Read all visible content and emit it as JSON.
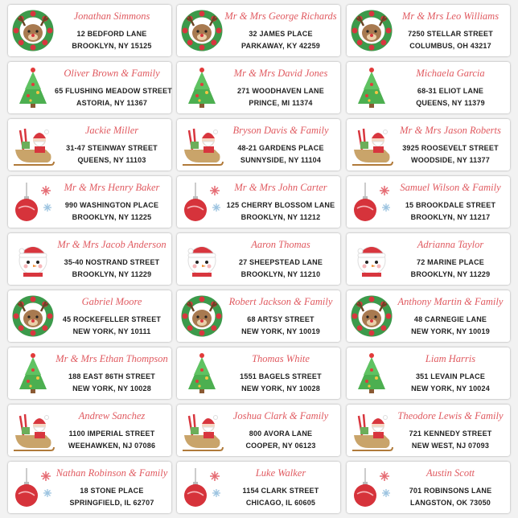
{
  "labels": [
    {
      "name": "Jonathan Simmons",
      "street": "12 BEDFORD LANE",
      "city": "BROOKLYN, NY 15125"
    },
    {
      "name": "Mr & Mrs George Richards",
      "street": "32 JAMES PLACE",
      "city": "PARKAWAY, KY 42259"
    },
    {
      "name": "Mr & Mrs Leo Williams",
      "street": "7250 STELLAR STREET",
      "city": "COLUMBUS, OH 43217"
    },
    {
      "name": "Oliver Brown & Family",
      "street": "65 FLUSHING MEADOW STREET",
      "city": "ASTORIA, NY 11367"
    },
    {
      "name": "Mr & Mrs David Jones",
      "street": "271 WOODHAVEN LANE",
      "city": "PRINCE, MI 11374"
    },
    {
      "name": "Michaela Garcia",
      "street": "68-31 ELIOT LANE",
      "city": "QUEENS, NY 11379"
    },
    {
      "name": "Jackie Miller",
      "street": "31-47 STEINWAY STREET",
      "city": "QUEENS, NY 11103"
    },
    {
      "name": "Bryson Davis & Family",
      "street": "48-21 GARDENS PLACE",
      "city": "SUNNYSIDE, NY 11104"
    },
    {
      "name": "Mr & Mrs Jason Roberts",
      "street": "3925 ROOSEVELT STREET",
      "city": "WOODSIDE, NY 11377"
    },
    {
      "name": "Mr & Mrs Henry Baker",
      "street": "990 WASHINGTON PLACE",
      "city": "BROOKLYN, NY 11225"
    },
    {
      "name": "Mr & Mrs John Carter",
      "street": "125 CHERRY BLOSSOM LANE",
      "city": "BROOKLYN, NY 11212"
    },
    {
      "name": "Samuel Wilson & Family",
      "street": "15 BROOKDALE STREET",
      "city": "BROOKLYN, NY 11217"
    },
    {
      "name": "Mr & Mrs Jacob Anderson",
      "street": "35-40 NOSTRAND STREET",
      "city": "BROOKLYN, NY 11229"
    },
    {
      "name": "Aaron Thomas",
      "street": "27 SHEEPSTEAD LANE",
      "city": "BROOKLYN, NY 11210"
    },
    {
      "name": "Adrianna Taylor",
      "street": "72 MARINE PLACE",
      "city": "BROOKLYN, NY 11229"
    },
    {
      "name": "Gabriel Moore",
      "street": "45 ROCKEFELLER STREET",
      "city": "NEW YORK, NY 10111"
    },
    {
      "name": "Robert Jackson & Family",
      "street": "68 ARTSY STREET",
      "city": "NEW YORK, NY 10019"
    },
    {
      "name": "Anthony Martin & Family",
      "street": "48 CARNEGIE LANE",
      "city": "NEW YORK, NY 10019"
    },
    {
      "name": "Mr & Mrs Ethan Thompson",
      "street": "188 EAST 86TH STREET",
      "city": "NEW YORK, NY 10028"
    },
    {
      "name": "Thomas White",
      "street": "1551 BAGELS STREET",
      "city": "NEW YORK, NY 10028"
    },
    {
      "name": "Liam Harris",
      "street": "351 LEVAIN PLACE",
      "city": "NEW YORK, NY 10024"
    },
    {
      "name": "Andrew Sanchez",
      "street": "1100 IMPERIAL STREET",
      "city": "WEEHAWKEN, NJ 07086"
    },
    {
      "name": "Joshua Clark & Family",
      "street": "800 AVORA LANE",
      "city": "COOPER, NY 06123"
    },
    {
      "name": "Theodore Lewis & Family",
      "street": "721 KENNEDY STREET",
      "city": "NEW WEST, NJ 07093"
    },
    {
      "name": "Nathan Robinson & Family",
      "street": "18 STONE PLACE",
      "city": "SPRINGFIELD, IL 62707"
    },
    {
      "name": "Luke Walker",
      "street": "1154 CLARK STREET",
      "city": "CHICAGO, IL 60605"
    },
    {
      "name": "Austin Scott",
      "street": "701 ROBINSONS LANE",
      "city": "LANGSTON, OK 73050"
    }
  ]
}
